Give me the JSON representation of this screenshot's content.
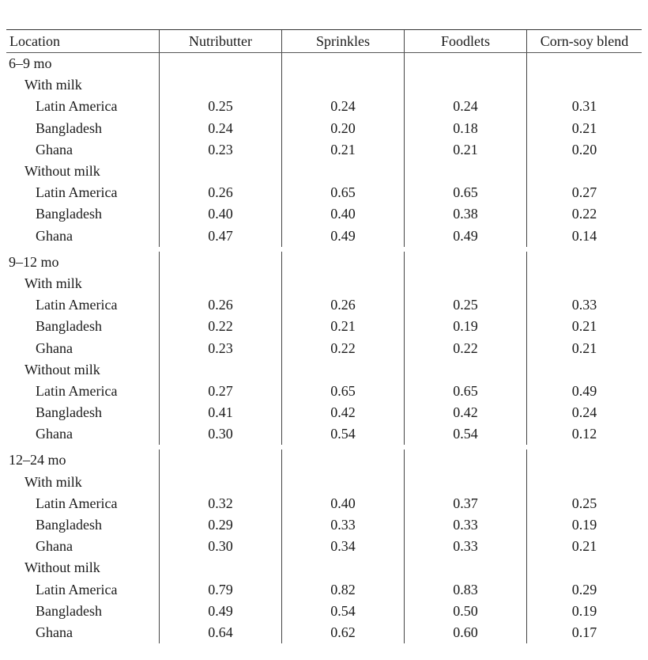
{
  "table": {
    "columns": [
      "Location",
      "Nutributter",
      "Sprinkles",
      "Foodlets",
      "Corn-soy blend"
    ],
    "groups": [
      {
        "label": "6–9 mo",
        "subgroups": [
          {
            "label": "With milk",
            "rows": [
              {
                "location": "Latin America",
                "values": [
                  "0.25",
                  "0.24",
                  "0.24",
                  "0.31"
                ]
              },
              {
                "location": "Bangladesh",
                "values": [
                  "0.24",
                  "0.20",
                  "0.18",
                  "0.21"
                ]
              },
              {
                "location": "Ghana",
                "values": [
                  "0.23",
                  "0.21",
                  "0.21",
                  "0.20"
                ]
              }
            ]
          },
          {
            "label": "Without milk",
            "rows": [
              {
                "location": "Latin America",
                "values": [
                  "0.26",
                  "0.65",
                  "0.65",
                  "0.27"
                ]
              },
              {
                "location": "Bangladesh",
                "values": [
                  "0.40",
                  "0.40",
                  "0.38",
                  "0.22"
                ]
              },
              {
                "location": "Ghana",
                "values": [
                  "0.47",
                  "0.49",
                  "0.49",
                  "0.14"
                ]
              }
            ]
          }
        ]
      },
      {
        "label": "9–12 mo",
        "subgroups": [
          {
            "label": "With milk",
            "rows": [
              {
                "location": "Latin America",
                "values": [
                  "0.26",
                  "0.26",
                  "0.25",
                  "0.33"
                ]
              },
              {
                "location": "Bangladesh",
                "values": [
                  "0.22",
                  "0.21",
                  "0.19",
                  "0.21"
                ]
              },
              {
                "location": "Ghana",
                "values": [
                  "0.23",
                  "0.22",
                  "0.22",
                  "0.21"
                ]
              }
            ]
          },
          {
            "label": "Without milk",
            "rows": [
              {
                "location": "Latin America",
                "values": [
                  "0.27",
                  "0.65",
                  "0.65",
                  "0.49"
                ]
              },
              {
                "location": "Bangladesh",
                "values": [
                  "0.41",
                  "0.42",
                  "0.42",
                  "0.24"
                ]
              },
              {
                "location": "Ghana",
                "values": [
                  "0.30",
                  "0.54",
                  "0.54",
                  "0.12"
                ]
              }
            ]
          }
        ]
      },
      {
        "label": "12–24 mo",
        "subgroups": [
          {
            "label": "With milk",
            "rows": [
              {
                "location": "Latin America",
                "values": [
                  "0.32",
                  "0.40",
                  "0.37",
                  "0.25"
                ]
              },
              {
                "location": "Bangladesh",
                "values": [
                  "0.29",
                  "0.33",
                  "0.33",
                  "0.19"
                ]
              },
              {
                "location": "Ghana",
                "values": [
                  "0.30",
                  "0.34",
                  "0.33",
                  "0.21"
                ]
              }
            ]
          },
          {
            "label": "Without milk",
            "rows": [
              {
                "location": "Latin America",
                "values": [
                  "0.79",
                  "0.82",
                  "0.83",
                  "0.29"
                ]
              },
              {
                "location": "Bangladesh",
                "values": [
                  "0.49",
                  "0.54",
                  "0.50",
                  "0.19"
                ]
              },
              {
                "location": "Ghana",
                "values": [
                  "0.64",
                  "0.62",
                  "0.60",
                  "0.17"
                ]
              }
            ]
          }
        ]
      }
    ]
  }
}
